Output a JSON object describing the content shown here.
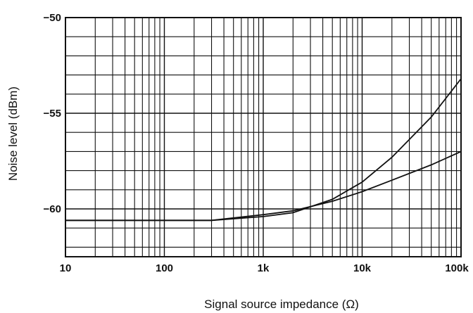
{
  "chart_data": {
    "type": "line",
    "title": "",
    "xlabel": "Signal source impedance (Ω)",
    "ylabel": "Noise level (dBm)",
    "x_scale": "log",
    "xlim": [
      10,
      100000
    ],
    "ylim": [
      -62.5,
      -50
    ],
    "grid": true,
    "x_ticks": [
      {
        "value": 10,
        "label": "10"
      },
      {
        "value": 100,
        "label": "100"
      },
      {
        "value": 1000,
        "label": "1k"
      },
      {
        "value": 10000,
        "label": "10k"
      },
      {
        "value": 100000,
        "label": "100k"
      }
    ],
    "y_ticks": [
      {
        "value": -50,
        "label": "−50"
      },
      {
        "value": -55,
        "label": "−55"
      },
      {
        "value": -60,
        "label": "−60"
      }
    ],
    "series": [
      {
        "points": [
          [
            10,
            -60.6
          ],
          [
            100,
            -60.6
          ],
          [
            300,
            -60.6
          ],
          [
            1000,
            -60.4
          ],
          [
            2000,
            -60.2
          ],
          [
            5000,
            -59.5
          ],
          [
            10000,
            -58.6
          ],
          [
            20000,
            -57.3
          ],
          [
            50000,
            -55.2
          ],
          [
            100000,
            -53.2
          ]
        ]
      },
      {
        "points": [
          [
            10,
            -60.6
          ],
          [
            100,
            -60.6
          ],
          [
            300,
            -60.6
          ],
          [
            1000,
            -60.3
          ],
          [
            2000,
            -60.1
          ],
          [
            5000,
            -59.6
          ],
          [
            10000,
            -59.1
          ],
          [
            20000,
            -58.5
          ],
          [
            50000,
            -57.7
          ],
          [
            100000,
            -57.0
          ]
        ]
      }
    ],
    "line_color": "#111111",
    "grid_color": "#111111"
  }
}
